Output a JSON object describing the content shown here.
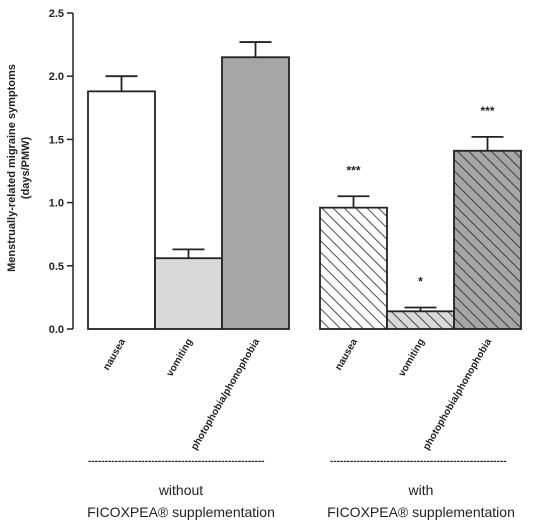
{
  "chart_data": {
    "type": "bar",
    "ylabel_line1": "Menstrually-related migraine symptoms",
    "ylabel_line2": "(days/PMW)",
    "ylim": [
      0,
      2.5
    ],
    "yticks": [
      "0.0",
      "0.5",
      "1.0",
      "1.5",
      "2.0",
      "2.5"
    ],
    "grid": false,
    "groups": [
      {
        "label_line1": "without",
        "label_line2": "FICOXPEA® supplementation",
        "separator": "-----------------------------------------------------",
        "bars": [
          {
            "category": "nausea",
            "value": 1.88,
            "error": 0.12,
            "fill": "#ffffff",
            "hatched": false,
            "significance": ""
          },
          {
            "category": "vomiting",
            "value": 0.56,
            "error": 0.07,
            "fill": "#d9d9d9",
            "hatched": false,
            "significance": ""
          },
          {
            "category": "photophobia/phonophobia",
            "value": 2.15,
            "error": 0.12,
            "fill": "#a6a6a6",
            "hatched": false,
            "significance": ""
          }
        ]
      },
      {
        "label_line1": "with",
        "label_line2": "FICOXPEA® supplementation",
        "separator": "-----------------------------------------------------",
        "bars": [
          {
            "category": "nausea",
            "value": 0.96,
            "error": 0.09,
            "fill": "#ffffff",
            "hatched": true,
            "significance": "***"
          },
          {
            "category": "vomiting",
            "value": 0.14,
            "error": 0.03,
            "fill": "#d9d9d9",
            "hatched": true,
            "significance": "*"
          },
          {
            "category": "photophobia/phonophobia",
            "value": 1.41,
            "error": 0.11,
            "fill": "#a6a6a6",
            "hatched": true,
            "significance": "***"
          }
        ]
      }
    ]
  }
}
